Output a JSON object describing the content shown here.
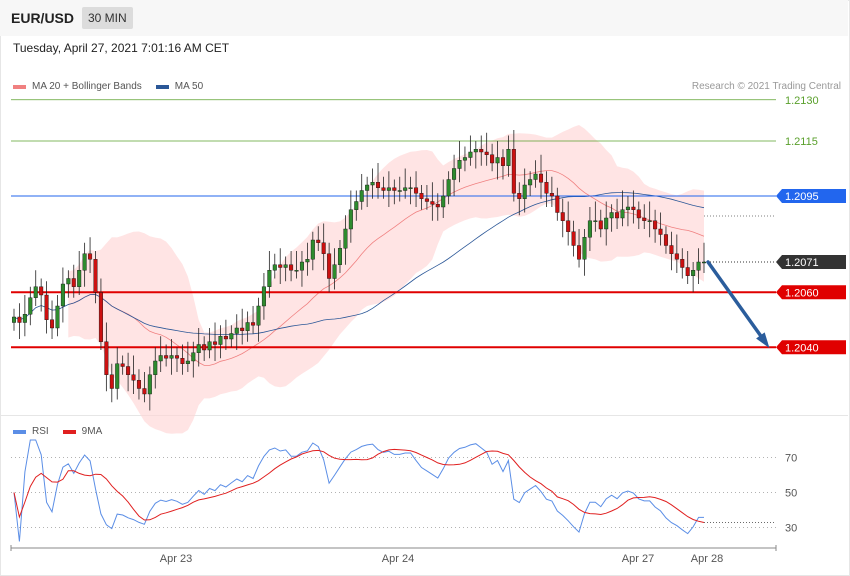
{
  "header": {
    "symbol": "EUR/USD",
    "timeframe": "30 MIN",
    "datetime": "Tuesday, April 27, 2021 7:01:16 AM CET"
  },
  "main_legend": [
    {
      "label": "MA 20 + Bollinger Bands",
      "color": "#f08080"
    },
    {
      "label": "MA 50",
      "color": "#2b5797"
    }
  ],
  "credit": "Research © 2021 Trading Central",
  "x_axis_labels": [
    "Apr 23",
    "Apr 24",
    "Apr 27",
    "Apr 28"
  ],
  "rsi_legend": [
    {
      "label": "RSI",
      "color": "#5b8ee6"
    },
    {
      "label": "9MA",
      "color": "#e02020"
    }
  ],
  "chart_data": [
    {
      "type": "candlestick",
      "title": "EUR/USD 30 MIN",
      "ylim": [
        1.2015,
        1.2135
      ],
      "price_levels": [
        {
          "label": "1.2130",
          "value": 1.213,
          "kind": "target",
          "color": "#5aa02c"
        },
        {
          "label": "1.2115",
          "value": 1.2115,
          "kind": "target",
          "color": "#5aa02c"
        },
        {
          "label": "1.2095",
          "value": 1.2095,
          "kind": "resistance",
          "color": "#2266ee"
        },
        {
          "label": "1.2071",
          "value": 1.2071,
          "kind": "last",
          "color": "#333333"
        },
        {
          "label": "1.2060",
          "value": 1.206,
          "kind": "support",
          "color": "#e00000"
        },
        {
          "label": "1.2040",
          "value": 1.204,
          "kind": "support",
          "color": "#e00000"
        }
      ],
      "forecast": {
        "from": 1.2071,
        "to": 1.204
      },
      "close": [
        1.2051,
        1.2049,
        1.2052,
        1.2058,
        1.2062,
        1.2059,
        1.205,
        1.2047,
        1.2055,
        1.2063,
        1.2065,
        1.2062,
        1.2068,
        1.2074,
        1.2072,
        1.206,
        1.2042,
        1.203,
        1.2025,
        1.2034,
        1.2033,
        1.203,
        1.2028,
        1.2025,
        1.2023,
        1.203,
        1.2035,
        1.2037,
        1.2036,
        1.2037,
        1.2036,
        1.2034,
        1.2035,
        1.2038,
        1.2041,
        1.2039,
        1.2042,
        1.2041,
        1.2044,
        1.2043,
        1.2045,
        1.2047,
        1.2046,
        1.2049,
        1.2048,
        1.2055,
        1.2062,
        1.2068,
        1.207,
        1.2069,
        1.207,
        1.2068,
        1.2068,
        1.2071,
        1.2072,
        1.2079,
        1.2078,
        1.2074,
        1.2065,
        1.207,
        1.2076,
        1.2083,
        1.209,
        1.2093,
        1.2097,
        1.2099,
        1.21,
        1.2098,
        1.2097,
        1.2098,
        1.2097,
        1.2097,
        1.2098,
        1.2098,
        1.2096,
        1.2094,
        1.2093,
        1.2092,
        1.2091,
        1.2095,
        1.2101,
        1.2105,
        1.2108,
        1.2109,
        1.2111,
        1.2112,
        1.2111,
        1.211,
        1.2107,
        1.2109,
        1.2106,
        1.2112,
        1.2096,
        1.2094,
        1.2099,
        1.2101,
        1.2103,
        1.21,
        1.2096,
        1.2095,
        1.2089,
        1.2086,
        1.2082,
        1.2077,
        1.2072,
        1.208,
        1.2086,
        1.2086,
        1.2083,
        1.2087,
        1.2089,
        1.2087,
        1.209,
        1.2091,
        1.209,
        1.2087,
        1.2086,
        1.2086,
        1.2083,
        1.2081,
        1.2077,
        1.2074,
        1.2072,
        1.2069,
        1.2066,
        1.2068,
        1.2071,
        1.2071
      ]
    },
    {
      "type": "line",
      "title": "RSI",
      "ylim": [
        20,
        80
      ],
      "reference_levels": [
        70,
        50,
        30
      ]
    }
  ]
}
